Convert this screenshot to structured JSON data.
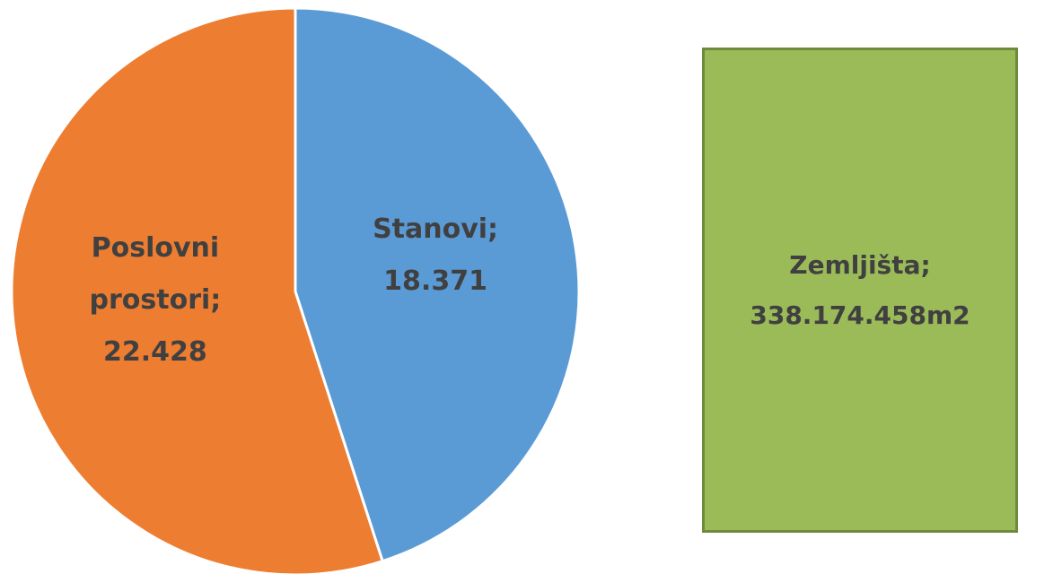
{
  "chart_data": {
    "type": "pie",
    "categories": [
      "Stanovi;",
      "Poslovni prostori;"
    ],
    "values": [
      18371,
      22428
    ],
    "value_labels": [
      "18.371",
      "22.428"
    ],
    "colors": [
      "#5b9bd5",
      "#ed7d31"
    ],
    "annotation": {
      "lines": [
        "Zemljišta;",
        "338.174.458m2"
      ],
      "color": "#9bbb59",
      "border_color": "#6e8b3d"
    }
  }
}
